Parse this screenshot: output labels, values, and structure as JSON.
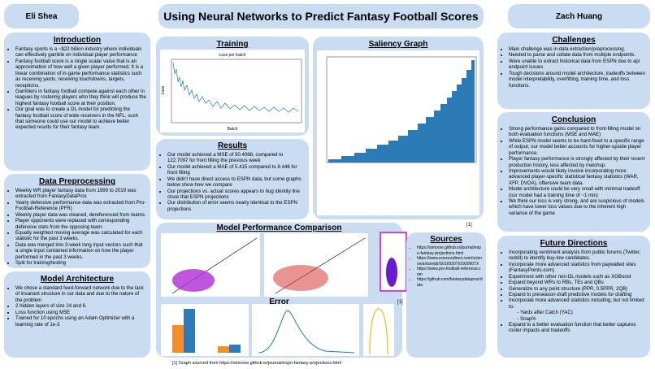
{
  "header": {
    "left_name": "Eli Shea",
    "title": "Using Neural Networks to Predict Fantasy Football Scores",
    "right_name": "Zach Huang"
  },
  "sections": {
    "introduction": {
      "title": "Introduction",
      "bullets": [
        "Fantasy sports is a ~$22 billion industry where individuals can effectively gamble on individual player performance",
        "Fantasy football score is a single scalar value that is an approximation of how well a given player performed. It is a linear combination of in-game performance statistics such as receiving yards, receiving touchdowns, targets, receptions.",
        "Gamblers in fantasy football compete against each other in leagues by rostering players who they think will produce the highest fantasy football score at their position.",
        "Our goal was to create a DL model for predicting the fantasy football score of wide receivers in the NFL, such that someone could use our model to achieve better expected results for their fantasy team."
      ]
    },
    "data_preprocessing": {
      "title": "Data Preprocessing",
      "bullets": [
        "Weekly WR player fantasy data from 1999 to 2019 was extracted from FantasyDataPros",
        "Yearly defensive performance data was extracted from Pro-Football-Reference (PFR)",
        "Weekly player data was cleaned, dereferenced from teams.",
        "Player opponents were replaced with corresponding defensive stats from the opposing team.",
        "Equally weighted moving average was calculated for each statistic for the past 3 weeks.",
        "Data was merged into 3-week long input vectors such that a single input contained information on how the player performed in the past 3 weeks.",
        "Split for training/testing"
      ]
    },
    "model_architecture": {
      "title": "Model Architecture",
      "bullets": [
        "We chose a standard feed-forward network due to the lack of invariant structure in our data and due to the nature of the problem",
        "2 hidden layers of size 24 and 6.",
        "Loss function using MSE",
        "Trained for 10 epochs using an Adam Optimizer with a learning rate of 1e-3"
      ]
    },
    "training": {
      "title": "Training",
      "plot_title": "Loss per batch",
      "x_label": "Batch",
      "y_label": "Loss"
    },
    "saliency": {
      "title": "Saliency Graph"
    },
    "results": {
      "title": "Results",
      "bullets": [
        "Our model achieved a MSE of 50.4088, compared to 122.7097 for front filling the previous week",
        "Our model achieved a MAE of 5.415 compared to 8.446 for front filling",
        "We didn't have direct access to ESPN data, but some graphs below show how we compare",
        "Our projections vs. actual scores appears to hug identity line close that ESPN projections",
        "Our distribution of error seems nearly identical to the ESPN projections"
      ]
    },
    "comparison": {
      "title": "Model Performance Comparison",
      "ref": "[1]"
    },
    "error": {
      "title": "Error",
      "ref": "[1]"
    },
    "sources": {
      "title": "Sources",
      "bullets": [
        "https://stmorse.github.io/journal/espn-fantasy-projections.html",
        "https://www.sciencedirect.com/science/article/pii/S016920701930007X",
        "https://www.pro-football-reference.com",
        "https://github.com/fantasydatapros/data"
      ]
    },
    "challenges": {
      "title": "Challenges",
      "bullets": [
        "Main challenge was in data extraction/preprocessing.",
        "Needed to parse and collate data from multiple endpoints.",
        "Were unable to extract historical data from ESPN due to api endpoint issues",
        "Tough decisions around model architecture, tradeoffs between model interpretability, overfitting, training time, and loss functions."
      ]
    },
    "conclusion": {
      "title": "Conclusion",
      "bullets": [
        "Strong performance gains compared to front-filling model on both evaluation functions (MSE and MAE)",
        "While ESPN model seems to be hard-fixed to a specific range of output, our model better accounts for higher-upside player performance.",
        "Player fantasy performance is strongly affected by their recent production history, less affected by matchup.",
        "Improvements would likely involve incorporating more advanced player-specific statistical fantasy statistics (WAR, XFP, DVOA), offensive team data.",
        "Model architecture could be very small with minimal tradeoff (our model had a training time of ~1 min)",
        "We think our loss is very strong, and are suspicious of models which have lower loss values due to the inherent high variance of the game"
      ]
    },
    "future_directions": {
      "title": "Future Directions",
      "bullets": [
        "Incorporating sentiment analysis from public forums (Twitter, reddit) to identify buy-low candidates.",
        "Incorporate more advanced statistics from paywalled sites (FantasyPoints.com)",
        "Experiment with other non-DL models such as XGBoost",
        "Expand beyond WRs to RBs, TEs and QBs",
        "Generalize to any point structure (PPR, 0.5PPR, 2QB)",
        "Expand to preseason draft predictive models for drafting",
        {
          "text": "Incorporate more advanced statistics including, but not limited to:",
          "sub": [
            "Yards after Catch (YAC)",
            "Snap%"
          ]
        },
        "Expand to a better evaluation function that better captures roster impacts and tradeoffs"
      ]
    }
  },
  "footnote": "[1] Graph sourced from https://stmorse.github.io/journal/espn-fantasy-projections.html"
}
